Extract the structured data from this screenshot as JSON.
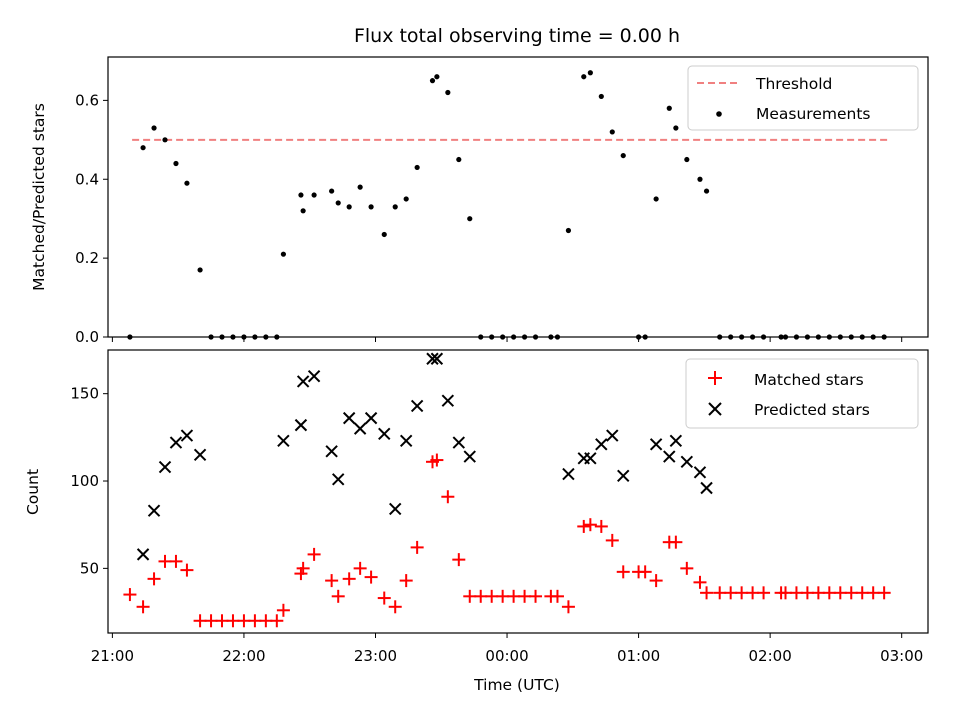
{
  "chart_data": [
    {
      "type": "scatter",
      "title": "Flux total observing time = 0.00 h",
      "xlabel": "",
      "ylabel": "Matched/Predicted stars",
      "xlim": [
        "20:58",
        "03:12"
      ],
      "ylim": [
        0,
        0.71
      ],
      "yticks": [
        "0.0",
        "0.2",
        "0.4",
        "0.6"
      ],
      "grid": false,
      "legend_position": "top-right",
      "threshold": {
        "name": "Threshold",
        "value": 0.5,
        "x_range": [
          "21:09",
          "02:54"
        ],
        "color": "#f08080",
        "style": "dashed"
      },
      "series": [
        {
          "name": "Measurements",
          "color": "#000000",
          "points": [
            [
              "21:08",
              0.0
            ],
            [
              "21:14",
              0.48
            ],
            [
              "21:19",
              0.53
            ],
            [
              "21:24",
              0.5
            ],
            [
              "21:29",
              0.44
            ],
            [
              "21:34",
              0.39
            ],
            [
              "21:40",
              0.17
            ],
            [
              "21:45",
              0.0
            ],
            [
              "21:50",
              0.0
            ],
            [
              "21:55",
              0.0
            ],
            [
              "22:00",
              0.0
            ],
            [
              "22:05",
              0.0
            ],
            [
              "22:10",
              0.0
            ],
            [
              "22:15",
              0.0
            ],
            [
              "22:18",
              0.21
            ],
            [
              "22:26",
              0.36
            ],
            [
              "22:27",
              0.32
            ],
            [
              "22:32",
              0.36
            ],
            [
              "22:40",
              0.37
            ],
            [
              "22:43",
              0.34
            ],
            [
              "22:48",
              0.33
            ],
            [
              "22:53",
              0.38
            ],
            [
              "22:58",
              0.33
            ],
            [
              "23:04",
              0.26
            ],
            [
              "23:09",
              0.33
            ],
            [
              "23:14",
              0.35
            ],
            [
              "23:19",
              0.43
            ],
            [
              "23:26",
              0.65
            ],
            [
              "23:28",
              0.66
            ],
            [
              "23:33",
              0.62
            ],
            [
              "23:38",
              0.45
            ],
            [
              "23:43",
              0.3
            ],
            [
              "23:48",
              0.0
            ],
            [
              "23:53",
              0.0
            ],
            [
              "23:58",
              0.0
            ],
            [
              "00:03",
              0.0
            ],
            [
              "00:08",
              0.0
            ],
            [
              "00:13",
              0.0
            ],
            [
              "00:20",
              0.0
            ],
            [
              "00:23",
              0.0
            ],
            [
              "00:28",
              0.27
            ],
            [
              "00:35",
              0.66
            ],
            [
              "00:38",
              0.67
            ],
            [
              "00:43",
              0.61
            ],
            [
              "00:48",
              0.52
            ],
            [
              "00:53",
              0.46
            ],
            [
              "01:00",
              0.0
            ],
            [
              "01:03",
              0.0
            ],
            [
              "01:08",
              0.35
            ],
            [
              "01:14",
              0.58
            ],
            [
              "01:17",
              0.53
            ],
            [
              "01:22",
              0.45
            ],
            [
              "01:28",
              0.4
            ],
            [
              "01:31",
              0.37
            ],
            [
              "01:37",
              0.0
            ],
            [
              "01:42",
              0.0
            ],
            [
              "01:47",
              0.0
            ],
            [
              "01:52",
              0.0
            ],
            [
              "01:57",
              0.0
            ],
            [
              "02:05",
              0.0
            ],
            [
              "02:07",
              0.0
            ],
            [
              "02:12",
              0.0
            ],
            [
              "02:17",
              0.0
            ],
            [
              "02:22",
              0.0
            ],
            [
              "02:27",
              0.0
            ],
            [
              "02:32",
              0.0
            ],
            [
              "02:37",
              0.0
            ],
            [
              "02:42",
              0.0
            ],
            [
              "02:47",
              0.0
            ],
            [
              "02:52",
              0.0
            ]
          ]
        }
      ]
    },
    {
      "type": "scatter",
      "title": "",
      "xlabel": "Time (UTC)",
      "ylabel": "Count",
      "xlim": [
        "20:58",
        "03:12"
      ],
      "ylim": [
        13,
        175
      ],
      "yticks": [
        "50",
        "100",
        "150"
      ],
      "xticks": [
        "21:00",
        "22:00",
        "23:00",
        "00:00",
        "01:00",
        "02:00",
        "03:00"
      ],
      "grid": false,
      "legend_position": "top-right",
      "series": [
        {
          "name": "Matched stars",
          "marker": "plus",
          "color": "#ff0000",
          "points": [
            [
              "21:08",
              35
            ],
            [
              "21:14",
              28
            ],
            [
              "21:19",
              44
            ],
            [
              "21:24",
              54
            ],
            [
              "21:29",
              54
            ],
            [
              "21:34",
              49
            ],
            [
              "21:40",
              20
            ],
            [
              "21:45",
              20
            ],
            [
              "21:50",
              20
            ],
            [
              "21:55",
              20
            ],
            [
              "22:00",
              20
            ],
            [
              "22:05",
              20
            ],
            [
              "22:10",
              20
            ],
            [
              "22:15",
              20
            ],
            [
              "22:18",
              26
            ],
            [
              "22:26",
              47
            ],
            [
              "22:27",
              50
            ],
            [
              "22:32",
              58
            ],
            [
              "22:40",
              43
            ],
            [
              "22:43",
              34
            ],
            [
              "22:48",
              44
            ],
            [
              "22:53",
              50
            ],
            [
              "22:58",
              45
            ],
            [
              "23:04",
              33
            ],
            [
              "23:09",
              28
            ],
            [
              "23:14",
              43
            ],
            [
              "23:19",
              62
            ],
            [
              "23:26",
              111
            ],
            [
              "23:28",
              112
            ],
            [
              "23:33",
              91
            ],
            [
              "23:38",
              55
            ],
            [
              "23:43",
              34
            ],
            [
              "23:48",
              34
            ],
            [
              "23:53",
              34
            ],
            [
              "23:58",
              34
            ],
            [
              "00:03",
              34
            ],
            [
              "00:08",
              34
            ],
            [
              "00:13",
              34
            ],
            [
              "00:20",
              34
            ],
            [
              "00:23",
              34
            ],
            [
              "00:28",
              28
            ],
            [
              "00:35",
              74
            ],
            [
              "00:38",
              75
            ],
            [
              "00:43",
              74
            ],
            [
              "00:48",
              66
            ],
            [
              "00:53",
              48
            ],
            [
              "01:00",
              48
            ],
            [
              "01:03",
              48
            ],
            [
              "01:08",
              43
            ],
            [
              "01:14",
              65
            ],
            [
              "01:17",
              65
            ],
            [
              "01:22",
              50
            ],
            [
              "01:28",
              42
            ],
            [
              "01:31",
              36
            ],
            [
              "01:37",
              36
            ],
            [
              "01:42",
              36
            ],
            [
              "01:47",
              36
            ],
            [
              "01:52",
              36
            ],
            [
              "01:57",
              36
            ],
            [
              "02:05",
              36
            ],
            [
              "02:07",
              36
            ],
            [
              "02:12",
              36
            ],
            [
              "02:17",
              36
            ],
            [
              "02:22",
              36
            ],
            [
              "02:27",
              36
            ],
            [
              "02:32",
              36
            ],
            [
              "02:37",
              36
            ],
            [
              "02:42",
              36
            ],
            [
              "02:47",
              36
            ],
            [
              "02:52",
              36
            ]
          ]
        },
        {
          "name": "Predicted stars",
          "marker": "x",
          "color": "#000000",
          "points": [
            [
              "21:14",
              58
            ],
            [
              "21:19",
              83
            ],
            [
              "21:24",
              108
            ],
            [
              "21:29",
              122
            ],
            [
              "21:34",
              126
            ],
            [
              "21:40",
              115
            ],
            [
              "22:18",
              123
            ],
            [
              "22:26",
              132
            ],
            [
              "22:27",
              157
            ],
            [
              "22:32",
              160
            ],
            [
              "22:40",
              117
            ],
            [
              "22:43",
              101
            ],
            [
              "22:48",
              136
            ],
            [
              "22:53",
              130
            ],
            [
              "22:58",
              136
            ],
            [
              "23:04",
              127
            ],
            [
              "23:09",
              84
            ],
            [
              "23:14",
              123
            ],
            [
              "23:19",
              143
            ],
            [
              "23:26",
              170
            ],
            [
              "23:28",
              170
            ],
            [
              "23:33",
              146
            ],
            [
              "23:38",
              122
            ],
            [
              "23:43",
              114
            ],
            [
              "00:28",
              104
            ],
            [
              "00:35",
              113
            ],
            [
              "00:38",
              113
            ],
            [
              "00:43",
              121
            ],
            [
              "00:48",
              126
            ],
            [
              "00:53",
              103
            ],
            [
              "01:08",
              121
            ],
            [
              "01:14",
              114
            ],
            [
              "01:17",
              123
            ],
            [
              "01:22",
              111
            ],
            [
              "01:28",
              105
            ],
            [
              "01:31",
              96
            ]
          ]
        }
      ]
    }
  ]
}
